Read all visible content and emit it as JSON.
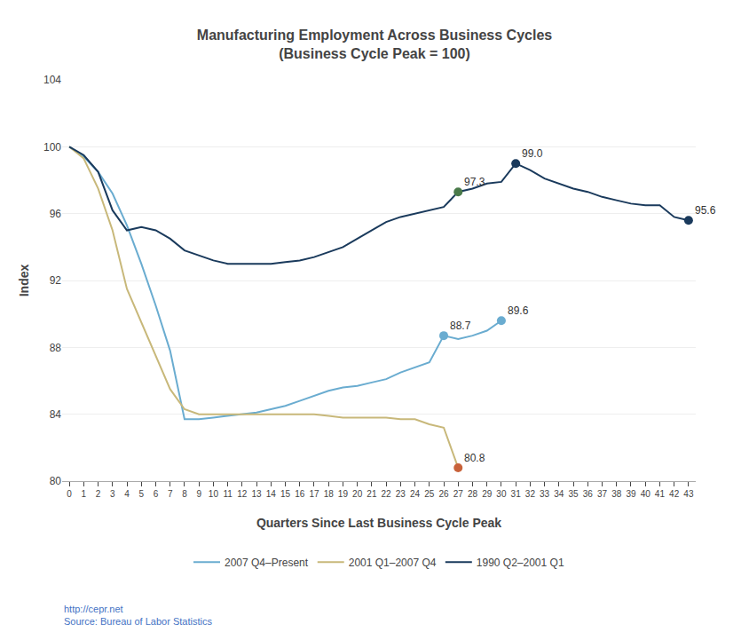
{
  "chart_data": {
    "type": "line",
    "title": "Manufacturing Employment Across Business Cycles\n(Business Cycle Peak = 100)",
    "xlabel": "Quarters Since Last Business Cycle Peak",
    "ylabel": "Index",
    "x": [
      0,
      1,
      2,
      3,
      4,
      5,
      6,
      7,
      8,
      9,
      10,
      11,
      12,
      13,
      14,
      15,
      16,
      17,
      18,
      19,
      20,
      21,
      22,
      23,
      24,
      25,
      26,
      27,
      28,
      29,
      30,
      31,
      32,
      33,
      34,
      35,
      36,
      37,
      38,
      39,
      40,
      41,
      42,
      43
    ],
    "series": [
      {
        "name": "2007 Q4–Present",
        "color": "#6aacd0",
        "values": [
          100.0,
          99.4,
          98.5,
          97.2,
          95.3,
          93.0,
          90.5,
          87.8,
          83.7,
          83.7,
          83.8,
          83.9,
          84.0,
          84.1,
          84.3,
          84.5,
          84.8,
          85.1,
          85.4,
          85.6,
          85.7,
          85.9,
          86.1,
          86.5,
          86.8,
          87.1,
          88.7,
          88.5,
          88.7,
          89.0,
          89.6,
          null,
          null,
          null,
          null,
          null,
          null,
          null,
          null,
          null,
          null,
          null,
          null,
          null
        ]
      },
      {
        "name": "2001 Q1–2007 Q4",
        "color": "#c8b87a",
        "values": [
          100.0,
          99.3,
          97.5,
          95.0,
          91.5,
          89.5,
          87.5,
          85.5,
          84.3,
          84.0,
          84.0,
          84.0,
          84.0,
          84.0,
          84.0,
          84.0,
          84.0,
          84.0,
          83.9,
          83.8,
          83.8,
          83.8,
          83.8,
          83.7,
          83.7,
          83.4,
          83.2,
          80.8,
          null,
          null,
          null,
          null,
          null,
          null,
          null,
          null,
          null,
          null,
          null,
          null,
          null,
          null,
          null,
          null
        ]
      },
      {
        "name": "1990 Q2–2001 Q1",
        "color": "#1a3a5c",
        "values": [
          100.0,
          99.5,
          98.5,
          96.2,
          95.0,
          95.2,
          95.0,
          94.5,
          93.8,
          93.5,
          93.2,
          93.0,
          93.0,
          93.0,
          93.0,
          93.1,
          93.2,
          93.4,
          93.7,
          94.0,
          94.5,
          95.0,
          95.5,
          95.8,
          96.0,
          96.2,
          96.4,
          97.3,
          97.5,
          97.8,
          97.9,
          99.0,
          98.6,
          98.1,
          97.8,
          97.5,
          97.3,
          97.0,
          96.8,
          96.6,
          96.5,
          96.5,
          95.8,
          95.6
        ]
      }
    ],
    "annotations": [
      {
        "x": 26,
        "y": 88.7,
        "text": "88.7",
        "color": "#6aacd0"
      },
      {
        "x": 30,
        "y": 89.6,
        "text": "89.6",
        "color": "#6aacd0"
      },
      {
        "x": 27,
        "y": 80.8,
        "text": "80.8",
        "color": "#c8623a"
      },
      {
        "x": 27,
        "y": 97.3,
        "text": "97.3",
        "color": "#4a7a4a"
      },
      {
        "x": 31,
        "y": 99.0,
        "text": "99.0",
        "color": "#1a3a5c"
      },
      {
        "x": 43,
        "y": 95.6,
        "text": "95.6",
        "color": "#1a3a5c"
      }
    ],
    "source": "http://cepr.net\nSource: Bureau of Labor Statistics",
    "xlim": [
      -0.5,
      43.5
    ],
    "ylim": [
      80,
      104
    ],
    "xticks": [
      0,
      1,
      2,
      3,
      4,
      5,
      6,
      7,
      8,
      9,
      10,
      11,
      12,
      13,
      14,
      15,
      16,
      17,
      18,
      19,
      20,
      21,
      22,
      23,
      24,
      25,
      26,
      27,
      28,
      29,
      30,
      31,
      32,
      33,
      34,
      35,
      36,
      37,
      38,
      39,
      40,
      41,
      42,
      43
    ],
    "yticks": [
      80,
      84,
      88,
      92,
      96,
      100,
      104
    ],
    "grid": "y",
    "legend": "bottom"
  }
}
